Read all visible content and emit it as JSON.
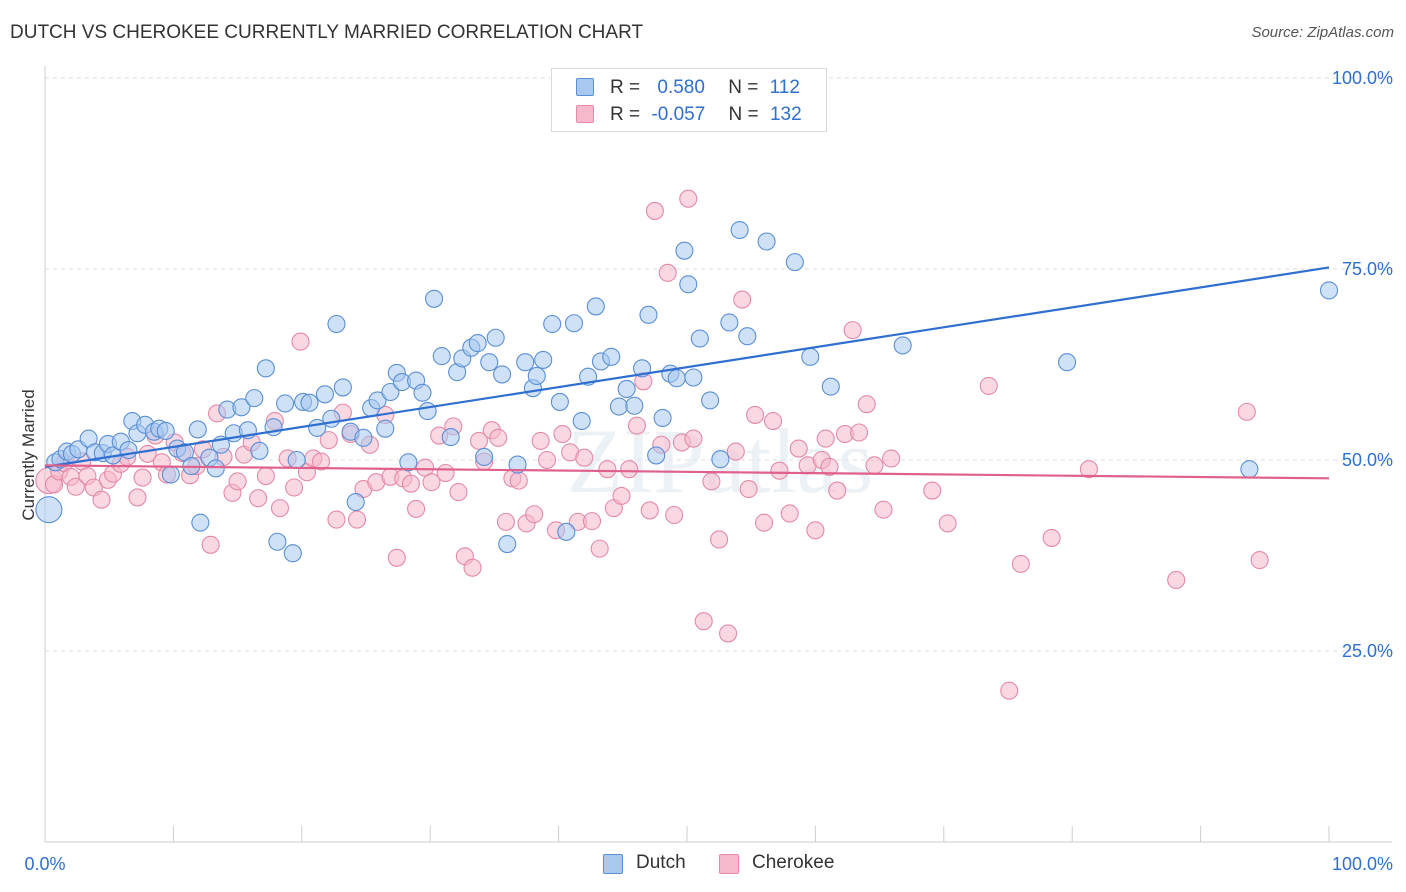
{
  "header": {
    "title": "DUTCH VS CHEROKEE CURRENTLY MARRIED CORRELATION CHART",
    "source": "Source: ZipAtlas.com"
  },
  "legend": {
    "r_label": "R =",
    "n_label": "N =",
    "rows": [
      {
        "r": "0.580",
        "n": "112"
      },
      {
        "r": "-0.057",
        "n": "132"
      }
    ]
  },
  "bottom_legend": {
    "dutch": "Dutch",
    "cherokee": "Cherokee"
  },
  "watermark": "ZIPatlas",
  "colors": {
    "dutch_fill": "#a8c8f0",
    "dutch_stroke": "#5b8fd6",
    "dutch_line": "#2f6fd0",
    "cherokee_fill": "#f6b8cb",
    "cherokee_stroke": "#e48aa8",
    "cherokee_line": "#e0608c",
    "tick_label": "#2f6fd0"
  },
  "chart_data": {
    "type": "scatter",
    "title": "DUTCH VS CHEROKEE CURRENTLY MARRIED CORRELATION CHART",
    "xlabel": "",
    "ylabel": "Currently Married",
    "xlim": [
      0,
      100
    ],
    "ylim": [
      0,
      100
    ],
    "x_tick_labels": [
      "0.0%",
      "100.0%"
    ],
    "y_tick_labels": [
      "100.0%",
      "75.0%",
      "50.0%",
      "25.0%"
    ],
    "grid": "horizontal dashed",
    "legend_placement": "top-center",
    "series": [
      {
        "name": "Dutch",
        "r": 0.58,
        "n": 112,
        "trend": {
          "x": [
            0,
            100
          ],
          "y": [
            49.1,
            75.2
          ]
        },
        "points": [
          [
            0.3,
            43.5
          ],
          [
            0.8,
            49.7
          ],
          [
            1.2,
            50.1
          ],
          [
            1.7,
            51.1
          ],
          [
            2.1,
            50.8
          ],
          [
            2.6,
            51.4
          ],
          [
            3.4,
            52.8
          ],
          [
            3.9,
            51.0
          ],
          [
            4.5,
            50.9
          ],
          [
            4.9,
            52.1
          ],
          [
            5.3,
            50.6
          ],
          [
            5.9,
            52.4
          ],
          [
            6.5,
            51.3
          ],
          [
            6.8,
            55.1
          ],
          [
            7.2,
            53.5
          ],
          [
            7.8,
            54.6
          ],
          [
            8.5,
            53.7
          ],
          [
            8.9,
            54.1
          ],
          [
            9.4,
            53.8
          ],
          [
            9.8,
            48.1
          ],
          [
            10.3,
            51.5
          ],
          [
            10.9,
            51.0
          ],
          [
            11.4,
            49.2
          ],
          [
            11.9,
            54.0
          ],
          [
            12.1,
            41.8
          ],
          [
            12.8,
            50.3
          ],
          [
            13.3,
            48.9
          ],
          [
            13.7,
            52.0
          ],
          [
            14.2,
            56.6
          ],
          [
            14.7,
            53.5
          ],
          [
            15.3,
            56.9
          ],
          [
            15.8,
            53.9
          ],
          [
            16.3,
            58.1
          ],
          [
            16.7,
            51.2
          ],
          [
            17.2,
            62.0
          ],
          [
            17.8,
            54.3
          ],
          [
            18.1,
            39.3
          ],
          [
            18.7,
            57.4
          ],
          [
            19.3,
            37.8
          ],
          [
            19.6,
            50.0
          ],
          [
            20.1,
            57.6
          ],
          [
            20.6,
            57.5
          ],
          [
            21.2,
            54.2
          ],
          [
            21.8,
            58.6
          ],
          [
            22.3,
            55.4
          ],
          [
            22.7,
            67.8
          ],
          [
            23.2,
            59.5
          ],
          [
            23.8,
            53.7
          ],
          [
            24.2,
            44.5
          ],
          [
            24.8,
            52.9
          ],
          [
            25.4,
            56.8
          ],
          [
            25.9,
            57.8
          ],
          [
            26.5,
            54.1
          ],
          [
            26.9,
            58.9
          ],
          [
            27.4,
            61.4
          ],
          [
            27.8,
            60.2
          ],
          [
            28.3,
            49.7
          ],
          [
            28.9,
            60.4
          ],
          [
            29.4,
            58.8
          ],
          [
            29.8,
            56.4
          ],
          [
            30.3,
            71.1
          ],
          [
            30.9,
            63.6
          ],
          [
            31.6,
            53.0
          ],
          [
            32.1,
            61.5
          ],
          [
            32.5,
            63.3
          ],
          [
            33.2,
            64.7
          ],
          [
            33.7,
            65.3
          ],
          [
            34.2,
            50.4
          ],
          [
            34.6,
            62.8
          ],
          [
            35.1,
            66.0
          ],
          [
            35.6,
            61.2
          ],
          [
            36.0,
            39.0
          ],
          [
            36.8,
            49.4
          ],
          [
            37.4,
            62.8
          ],
          [
            38.0,
            59.4
          ],
          [
            38.3,
            61.0
          ],
          [
            38.8,
            63.1
          ],
          [
            39.5,
            67.8
          ],
          [
            40.1,
            57.6
          ],
          [
            40.6,
            40.6
          ],
          [
            41.2,
            67.9
          ],
          [
            41.8,
            55.1
          ],
          [
            42.3,
            60.9
          ],
          [
            42.9,
            70.1
          ],
          [
            43.3,
            62.9
          ],
          [
            44.1,
            63.5
          ],
          [
            44.7,
            57.0
          ],
          [
            45.3,
            59.3
          ],
          [
            45.9,
            57.1
          ],
          [
            46.5,
            62.0
          ],
          [
            47.0,
            69.0
          ],
          [
            47.6,
            50.6
          ],
          [
            48.1,
            55.5
          ],
          [
            48.7,
            61.3
          ],
          [
            49.2,
            60.7
          ],
          [
            49.8,
            77.4
          ],
          [
            50.1,
            73.0
          ],
          [
            50.5,
            60.8
          ],
          [
            51.0,
            65.9
          ],
          [
            51.8,
            57.8
          ],
          [
            52.6,
            50.1
          ],
          [
            53.3,
            68.0
          ],
          [
            54.1,
            80.1
          ],
          [
            54.7,
            66.2
          ],
          [
            56.2,
            78.6
          ],
          [
            58.4,
            75.9
          ],
          [
            59.6,
            63.5
          ],
          [
            61.2,
            59.6
          ],
          [
            66.8,
            65.0
          ],
          [
            79.6,
            62.8
          ],
          [
            93.8,
            48.8
          ],
          [
            100.0,
            72.2
          ]
        ]
      },
      {
        "name": "Cherokee",
        "r": -0.057,
        "n": 132,
        "trend": {
          "x": [
            0,
            100
          ],
          "y": [
            49.3,
            47.6
          ]
        },
        "points": [
          [
            0.3,
            47.3
          ],
          [
            0.7,
            46.8
          ],
          [
            1.1,
            48.5
          ],
          [
            1.5,
            49.6
          ],
          [
            2.0,
            47.8
          ],
          [
            2.4,
            46.5
          ],
          [
            2.9,
            49.8
          ],
          [
            3.3,
            47.9
          ],
          [
            3.8,
            46.4
          ],
          [
            4.4,
            44.8
          ],
          [
            4.9,
            47.4
          ],
          [
            5.3,
            48.2
          ],
          [
            5.9,
            49.5
          ],
          [
            6.4,
            50.4
          ],
          [
            7.2,
            45.1
          ],
          [
            7.6,
            47.7
          ],
          [
            8.0,
            50.8
          ],
          [
            8.6,
            53.2
          ],
          [
            9.1,
            49.7
          ],
          [
            9.5,
            48.1
          ],
          [
            10.1,
            52.3
          ],
          [
            10.7,
            50.9
          ],
          [
            11.3,
            48.0
          ],
          [
            11.8,
            49.2
          ],
          [
            12.3,
            51.4
          ],
          [
            12.9,
            38.9
          ],
          [
            13.4,
            56.1
          ],
          [
            13.9,
            50.4
          ],
          [
            14.6,
            45.7
          ],
          [
            15.0,
            47.2
          ],
          [
            15.5,
            50.7
          ],
          [
            16.1,
            52.3
          ],
          [
            16.6,
            45.0
          ],
          [
            17.2,
            47.9
          ],
          [
            17.9,
            55.1
          ],
          [
            18.3,
            43.7
          ],
          [
            18.9,
            50.2
          ],
          [
            19.4,
            46.4
          ],
          [
            19.9,
            65.5
          ],
          [
            20.4,
            48.4
          ],
          [
            20.9,
            50.2
          ],
          [
            21.5,
            49.8
          ],
          [
            22.1,
            52.6
          ],
          [
            22.7,
            42.2
          ],
          [
            23.2,
            56.2
          ],
          [
            23.8,
            53.4
          ],
          [
            24.3,
            42.2
          ],
          [
            24.8,
            46.2
          ],
          [
            25.3,
            52.0
          ],
          [
            25.8,
            47.1
          ],
          [
            26.5,
            55.9
          ],
          [
            26.9,
            47.8
          ],
          [
            27.4,
            37.2
          ],
          [
            27.9,
            47.6
          ],
          [
            28.5,
            46.9
          ],
          [
            28.9,
            43.6
          ],
          [
            29.6,
            49.0
          ],
          [
            30.1,
            47.1
          ],
          [
            30.7,
            53.2
          ],
          [
            31.2,
            48.3
          ],
          [
            31.8,
            54.4
          ],
          [
            32.2,
            45.8
          ],
          [
            32.7,
            37.4
          ],
          [
            33.3,
            35.9
          ],
          [
            33.8,
            52.5
          ],
          [
            34.2,
            49.8
          ],
          [
            34.8,
            53.9
          ],
          [
            35.3,
            52.9
          ],
          [
            35.9,
            41.9
          ],
          [
            36.4,
            47.6
          ],
          [
            36.9,
            47.3
          ],
          [
            37.5,
            41.7
          ],
          [
            38.1,
            42.9
          ],
          [
            38.6,
            52.5
          ],
          [
            39.1,
            50.0
          ],
          [
            39.8,
            40.8
          ],
          [
            40.3,
            53.4
          ],
          [
            40.9,
            51.0
          ],
          [
            41.5,
            41.9
          ],
          [
            42.0,
            50.3
          ],
          [
            42.6,
            42.0
          ],
          [
            43.2,
            38.4
          ],
          [
            43.8,
            48.8
          ],
          [
            44.3,
            43.7
          ],
          [
            44.9,
            45.3
          ],
          [
            45.5,
            48.8
          ],
          [
            46.1,
            54.5
          ],
          [
            46.6,
            60.3
          ],
          [
            47.1,
            43.4
          ],
          [
            47.5,
            82.6
          ],
          [
            48.0,
            52.0
          ],
          [
            48.5,
            74.5
          ],
          [
            49.0,
            42.8
          ],
          [
            49.6,
            52.3
          ],
          [
            50.1,
            84.2
          ],
          [
            50.5,
            52.8
          ],
          [
            51.3,
            28.9
          ],
          [
            51.9,
            47.2
          ],
          [
            52.5,
            39.6
          ],
          [
            53.2,
            27.3
          ],
          [
            53.8,
            51.1
          ],
          [
            54.3,
            71.0
          ],
          [
            54.8,
            46.2
          ],
          [
            55.3,
            55.9
          ],
          [
            56.0,
            41.8
          ],
          [
            56.7,
            55.1
          ],
          [
            57.2,
            48.6
          ],
          [
            58.0,
            43.0
          ],
          [
            58.7,
            51.5
          ],
          [
            59.4,
            49.3
          ],
          [
            60.0,
            40.8
          ],
          [
            60.5,
            50.0
          ],
          [
            61.1,
            49.1
          ],
          [
            61.7,
            46.0
          ],
          [
            62.3,
            53.4
          ],
          [
            62.9,
            67.0
          ],
          [
            63.4,
            53.6
          ],
          [
            64.0,
            57.3
          ],
          [
            64.6,
            49.3
          ],
          [
            65.3,
            43.5
          ],
          [
            65.9,
            50.2
          ],
          [
            70.3,
            41.7
          ],
          [
            73.5,
            59.7
          ],
          [
            76.0,
            36.4
          ],
          [
            78.4,
            39.8
          ],
          [
            81.3,
            48.8
          ],
          [
            88.1,
            34.3
          ],
          [
            93.6,
            56.3
          ],
          [
            94.6,
            36.9
          ],
          [
            75.1,
            19.8
          ],
          [
            69.1,
            46.0
          ],
          [
            60.8,
            52.8
          ]
        ]
      }
    ]
  }
}
